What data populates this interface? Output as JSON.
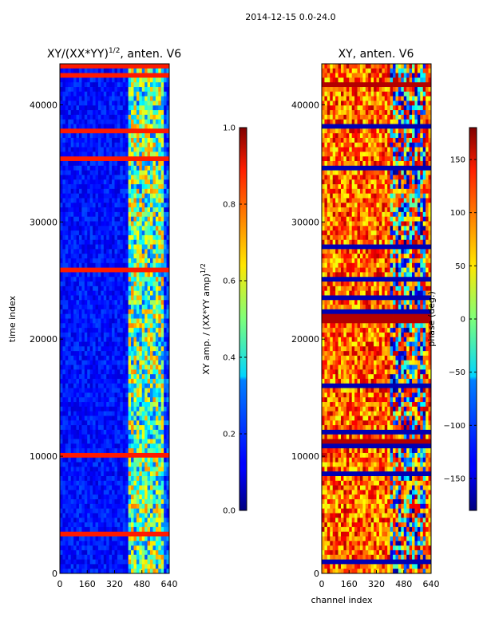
{
  "suptitle": "2014-12-15 0.0-24.0",
  "chart_data": [
    {
      "type": "heatmap",
      "title_main": "XY/(XX*YY)",
      "title_sup": "1/2",
      "title_rest": ", anten. V6",
      "xlabel": "",
      "ylabel": "time index",
      "xlim": [
        0,
        640
      ],
      "ylim": [
        0,
        43500
      ],
      "x_ticks": [
        0,
        160,
        320,
        480,
        640
      ],
      "y_ticks": [
        0,
        10000,
        20000,
        30000,
        40000
      ],
      "colorbar": {
        "label_main": "XY amp. / (XX*YY amp)",
        "label_sup": "1/2",
        "range": [
          0.0,
          1.0
        ],
        "ticks": [
          "0.0",
          "0.2",
          "0.4",
          "0.6",
          "0.8",
          "1.0"
        ],
        "colormap": "jet"
      }
    },
    {
      "type": "heatmap",
      "title_main": "XY, anten. V6",
      "title_sup": "",
      "title_rest": "",
      "xlabel": "channel index",
      "ylabel": "",
      "xlim": [
        0,
        640
      ],
      "ylim": [
        0,
        43500
      ],
      "x_ticks": [
        0,
        160,
        320,
        480,
        640
      ],
      "y_ticks": [
        0,
        10000,
        20000,
        30000,
        40000
      ],
      "colorbar": {
        "label_main": "phase (deg.)",
        "label_sup": "",
        "range": [
          -180,
          180
        ],
        "ticks": [
          "−150",
          "−100",
          "−50",
          "0",
          "50",
          "100",
          "150"
        ],
        "tick_values": [
          -150,
          -100,
          -50,
          0,
          50,
          100,
          150
        ],
        "colormap": "jet"
      }
    }
  ]
}
